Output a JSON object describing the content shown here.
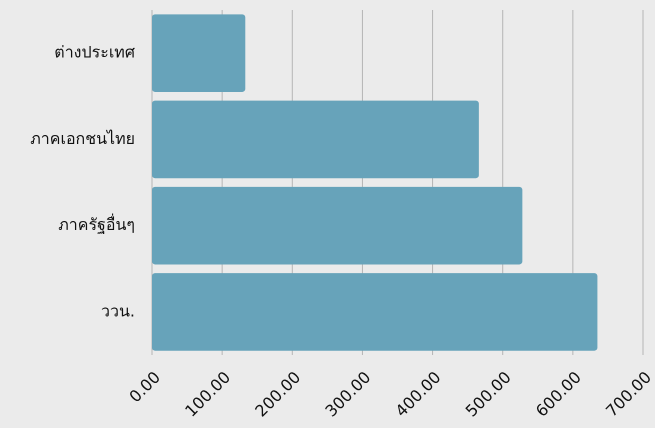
{
  "chart_data": {
    "type": "bar",
    "orientation": "horizontal",
    "categories": [
      "ต่างประเทศ",
      "ภาคเอกชนไทย",
      "ภาครัฐอื่นๆ",
      "ววน."
    ],
    "values": [
      133,
      466,
      528,
      635
    ],
    "color": "#67a3ba",
    "xlim": [
      0,
      700
    ],
    "xticks": [
      {
        "value": 0,
        "label": "0.00"
      },
      {
        "value": 100,
        "label": "100.00"
      },
      {
        "value": 200,
        "label": "200.00"
      },
      {
        "value": 300,
        "label": "300.00"
      },
      {
        "value": 400,
        "label": "400.00"
      },
      {
        "value": 500,
        "label": "500.00"
      },
      {
        "value": 600,
        "label": "600.00"
      },
      {
        "value": 700,
        "label": "700.00"
      }
    ],
    "grid": true
  }
}
